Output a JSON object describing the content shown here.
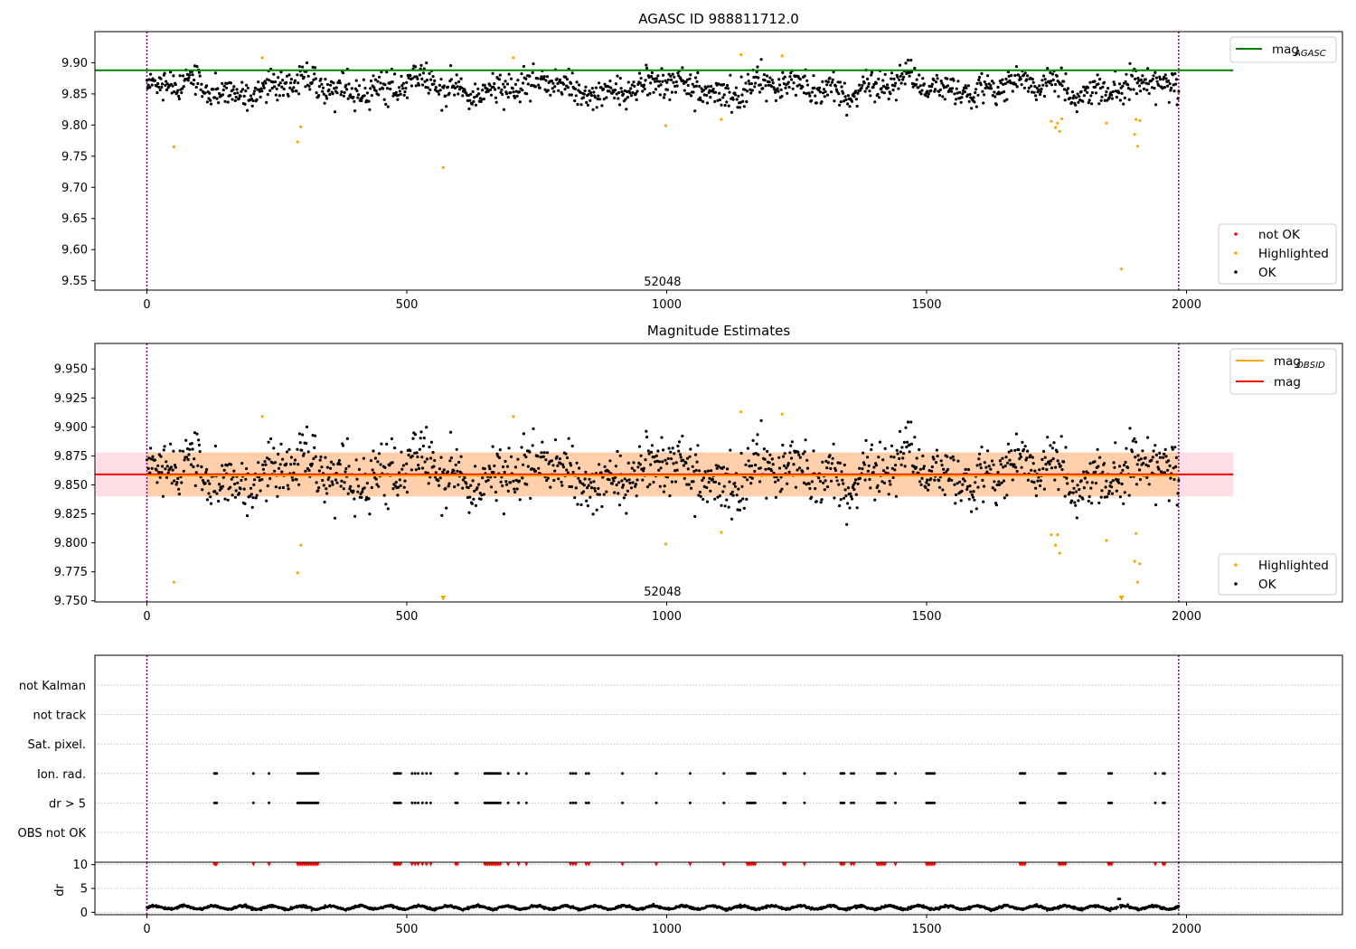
{
  "chart_data": [
    {
      "type": "scatter",
      "title": "AGASC ID 988811712.0",
      "xlim": [
        -100,
        2300
      ],
      "ylim": [
        9.535,
        9.95
      ],
      "x_ticks": [
        0,
        500,
        1000,
        1500,
        2000
      ],
      "x_tick_labels": [
        "0",
        "500",
        "1000",
        "1500",
        "2000"
      ],
      "y_ticks": [
        9.55,
        9.6,
        9.65,
        9.7,
        9.75,
        9.8,
        9.85,
        9.9
      ],
      "y_tick_labels": [
        "9.55",
        "9.60",
        "9.65",
        "9.70",
        "9.75",
        "9.80",
        "9.85",
        "9.90"
      ],
      "obsid_boundaries": [
        0,
        1985
      ],
      "obsid_label": {
        "text": "52048",
        "x": 992,
        "y": 9.545
      },
      "lines": [
        {
          "name": "mag_AGASC",
          "y": 9.888,
          "x_range": [
            -100,
            2090
          ],
          "color": "#008000"
        }
      ],
      "series": [
        {
          "name": "not OK",
          "color": "#ff0000",
          "points": []
        },
        {
          "name": "Highlighted",
          "color": "#ffa500",
          "points": [
            [
              52,
              9.765
            ],
            [
              222,
              9.908
            ],
            [
              290,
              9.773
            ],
            [
              296,
              9.797
            ],
            [
              570,
              9.732
            ],
            [
              705,
              9.908
            ],
            [
              998,
              9.799
            ],
            [
              1105,
              9.809
            ],
            [
              1143,
              9.913
            ],
            [
              1222,
              9.911
            ],
            [
              1740,
              9.806
            ],
            [
              1748,
              9.796
            ],
            [
              1752,
              9.803
            ],
            [
              1756,
              9.79
            ],
            [
              1760,
              9.81
            ],
            [
              1846,
              9.803
            ],
            [
              1875,
              9.569
            ],
            [
              1900,
              9.785
            ],
            [
              1903,
              9.809
            ],
            [
              1906,
              9.766
            ],
            [
              1910,
              9.807
            ]
          ]
        },
        {
          "name": "OK",
          "color": "#000000",
          "points_generated": true,
          "n": 1400,
          "x_range": [
            0,
            1985
          ],
          "y_center": 9.86,
          "y_spread": 0.022
        }
      ],
      "legend_lines": [
        {
          "label_main": "mag",
          "label_sub": "AGASC",
          "color": "#008000"
        }
      ],
      "legend_markers": [
        {
          "label": "not OK",
          "color": "#ff0000"
        },
        {
          "label": "Highlighted",
          "color": "#ffa500"
        },
        {
          "label": "OK",
          "color": "#000000"
        }
      ]
    },
    {
      "type": "scatter",
      "title": "Magnitude Estimates",
      "xlim": [
        -100,
        2300
      ],
      "ylim": [
        9.749,
        9.972
      ],
      "x_ticks": [
        0,
        500,
        1000,
        1500,
        2000
      ],
      "x_tick_labels": [
        "0",
        "500",
        "1000",
        "1500",
        "2000"
      ],
      "y_ticks": [
        9.75,
        9.775,
        9.8,
        9.825,
        9.85,
        9.875,
        9.9,
        9.925,
        9.95
      ],
      "y_tick_labels": [
        "9.750",
        "9.775",
        "9.800",
        "9.825",
        "9.850",
        "9.875",
        "9.900",
        "9.925",
        "9.950"
      ],
      "obsid_boundaries": [
        0,
        1985
      ],
      "obsid_label": {
        "text": "52048",
        "x": 992,
        "y": 9.756
      },
      "bands": [
        {
          "name": "mag",
          "y0": 9.84,
          "y1": 9.878,
          "x_range": [
            -100,
            2090
          ],
          "color": "#ffc0cb",
          "opacity": 0.5
        },
        {
          "name": "mag_OBSID",
          "y0": 9.84,
          "y1": 9.878,
          "x_range": [
            0,
            1985
          ],
          "color": "#ffa500",
          "opacity": 0.25
        }
      ],
      "lines": [
        {
          "name": "mag",
          "y": 9.859,
          "x_range": [
            -100,
            2090
          ],
          "color": "#ff0000"
        },
        {
          "name": "mag_OBSID",
          "y": 9.858,
          "x_range": [
            0,
            1985
          ],
          "color": "#ffa500"
        }
      ],
      "series": [
        {
          "name": "Highlighted",
          "color": "#ffa500",
          "points": [
            [
              52,
              9.766
            ],
            [
              222,
              9.909
            ],
            [
              290,
              9.774
            ],
            [
              296,
              9.798
            ],
            [
              705,
              9.909
            ],
            [
              998,
              9.799
            ],
            [
              1105,
              9.809
            ],
            [
              1143,
              9.913
            ],
            [
              1222,
              9.911
            ],
            [
              1740,
              9.807
            ],
            [
              1748,
              9.798
            ],
            [
              1752,
              9.807
            ],
            [
              1756,
              9.791
            ],
            [
              1846,
              9.802
            ],
            [
              1900,
              9.784
            ],
            [
              1903,
              9.808
            ],
            [
              1906,
              9.766
            ],
            [
              1910,
              9.782
            ]
          ]
        },
        {
          "name": "Highlighted (clipped)",
          "color": "#ffa500",
          "marker": "triangle",
          "points": [
            [
              570,
              9.75
            ],
            [
              1875,
              9.75
            ]
          ]
        },
        {
          "name": "OK",
          "color": "#000000",
          "points_generated": true,
          "n": 1400,
          "x_range": [
            0,
            1985
          ],
          "y_center": 9.86,
          "y_spread": 0.022
        }
      ],
      "legend_lines": [
        {
          "label_main": "mag",
          "label_sub": "OBSID",
          "color": "#ffa500"
        },
        {
          "label_main": "mag",
          "label_sub": "",
          "color": "#ff0000"
        }
      ],
      "legend_markers": [
        {
          "label": "Highlighted",
          "color": "#ffa500"
        },
        {
          "label": "OK",
          "color": "#000000"
        }
      ]
    },
    {
      "type": "scatter",
      "title": "",
      "xlim": [
        -100,
        2300
      ],
      "categories": [
        "OBS not OK",
        "dr > 5",
        "Ion. rad.",
        "Sat. pixel.",
        "not track",
        "not Kalman"
      ],
      "flag_x_positions": [
        130,
        132,
        134,
        205,
        235,
        290,
        293,
        296,
        299,
        302,
        305,
        308,
        311,
        314,
        317,
        320,
        323,
        326,
        329,
        476,
        479,
        482,
        485,
        488,
        510,
        516,
        522,
        530,
        538,
        546,
        594,
        597,
        650,
        653,
        656,
        659,
        662,
        665,
        668,
        671,
        674,
        677,
        680,
        695,
        715,
        730,
        815,
        820,
        825,
        845,
        850,
        915,
        980,
        1045,
        1110,
        1155,
        1158,
        1161,
        1164,
        1167,
        1170,
        1225,
        1228,
        1265,
        1335,
        1338,
        1341,
        1355,
        1360,
        1405,
        1408,
        1411,
        1414,
        1417,
        1420,
        1440,
        1500,
        1503,
        1506,
        1509,
        1512,
        1515,
        1680,
        1683,
        1686,
        1689,
        1755,
        1758,
        1761,
        1764,
        1767,
        1850,
        1853,
        1856,
        1940,
        1955,
        1958
      ],
      "flag_rows": [
        "dr > 5",
        "Ion. rad."
      ],
      "obsid_boundaries": [
        0,
        1985
      ]
    },
    {
      "type": "scatter",
      "title": "",
      "xlim": [
        -100,
        2300
      ],
      "ylim": [
        -0.5,
        10.5
      ],
      "ylabel": "dr",
      "x_ticks": [
        0,
        500,
        1000,
        1500,
        2000
      ],
      "x_tick_labels": [
        "0",
        "500",
        "1000",
        "1500",
        "2000"
      ],
      "y_ticks": [
        0,
        5,
        10
      ],
      "y_tick_labels": [
        "0",
        "5",
        "10"
      ],
      "obsid_boundaries": [
        0,
        1985
      ],
      "series": [
        {
          "name": "dr",
          "color": "#000000",
          "points_generated": true,
          "n": 1985,
          "x_range": [
            0,
            1985
          ],
          "y_center": 1.0,
          "y_spread": 0.4
        },
        {
          "name": "dr clipped",
          "color": "#ff0000",
          "marker": "triangle",
          "y": 10,
          "x_from": "flag_x_positions"
        }
      ]
    }
  ]
}
